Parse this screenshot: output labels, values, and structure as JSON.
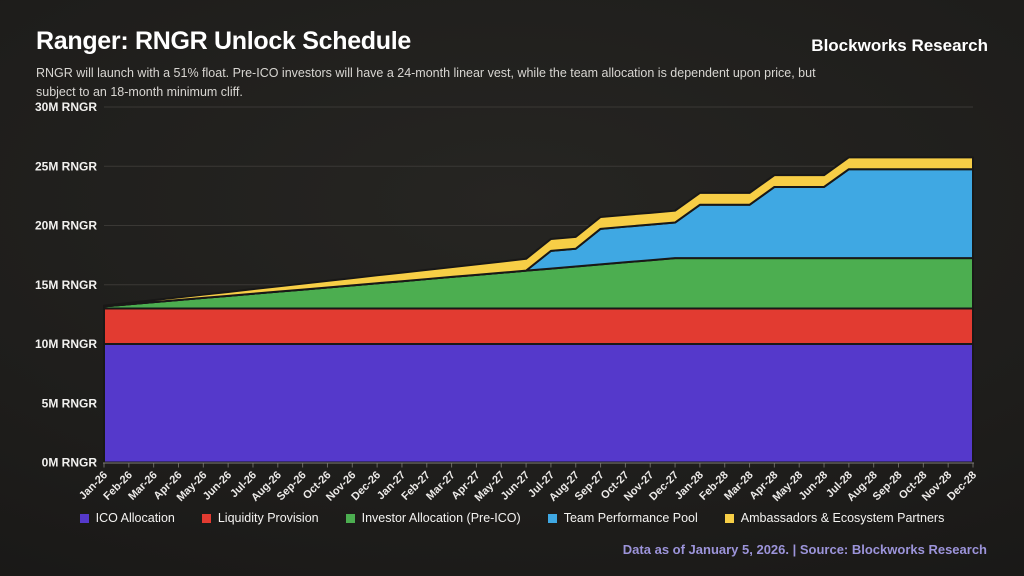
{
  "header": {
    "title": "Ranger: RNGR Unlock Schedule",
    "brand": "Blockworks Research"
  },
  "subtitle": {
    "line1": "RNGR will launch with a 51% float. Pre-ICO investors will have a 24-month linear vest, while the team allocation is dependent upon price, but",
    "line2": "subject to an 18-month minimum cliff."
  },
  "footer": {
    "text": "Data as of January 5, 2026. | Source: Blockworks Research",
    "color": "#9C94DA"
  },
  "chart_data": {
    "type": "area",
    "stacked": true,
    "title": "Ranger: RNGR Unlock Schedule",
    "unit": "M RNGR",
    "ylim": [
      0,
      30
    ],
    "grid": "horizontal",
    "legend_position": "bottom",
    "y_ticks": [
      {
        "value": 0,
        "label": "0M RNGR"
      },
      {
        "value": 5,
        "label": "5M RNGR"
      },
      {
        "value": 10,
        "label": "10M RNGR"
      },
      {
        "value": 15,
        "label": "15M RNGR"
      },
      {
        "value": 20,
        "label": "20M RNGR"
      },
      {
        "value": 25,
        "label": "25M RNGR"
      },
      {
        "value": 30,
        "label": "30M RNGR"
      }
    ],
    "months": [
      "Jan-26",
      "Feb-26",
      "Mar-26",
      "Apr-26",
      "May-26",
      "Jun-26",
      "Jul-26",
      "Aug-26",
      "Sep-26",
      "Oct-26",
      "Nov-26",
      "Dec-26",
      "Jan-27",
      "Feb-27",
      "Mar-27",
      "Apr-27",
      "May-27",
      "Jun-27",
      "Jul-27",
      "Aug-27",
      "Sep-27",
      "Oct-27",
      "Nov-27",
      "Dec-27",
      "Jan-28",
      "Feb-28",
      "Mar-28",
      "Apr-28",
      "May-28",
      "Jun-28",
      "Jul-28",
      "Aug-28",
      "Sep-28",
      "Oct-28",
      "Nov-28",
      "Dec-28"
    ],
    "series": [
      {
        "name": "ICO Allocation",
        "color": "#5539CB",
        "values": [
          10,
          10,
          10,
          10,
          10,
          10,
          10,
          10,
          10,
          10,
          10,
          10,
          10,
          10,
          10,
          10,
          10,
          10,
          10,
          10,
          10,
          10,
          10,
          10,
          10,
          10,
          10,
          10,
          10,
          10,
          10,
          10,
          10,
          10,
          10,
          10
        ]
      },
      {
        "name": "Liquidity Provision",
        "color": "#E23B31",
        "values": [
          3,
          3,
          3,
          3,
          3,
          3,
          3,
          3,
          3,
          3,
          3,
          3,
          3,
          3,
          3,
          3,
          3,
          3,
          3,
          3,
          3,
          3,
          3,
          3,
          3,
          3,
          3,
          3,
          3,
          3,
          3,
          3,
          3,
          3,
          3,
          3
        ]
      },
      {
        "name": "Investor Allocation (Pre-ICO)",
        "color": "#4CAE50",
        "values": [
          0.18,
          0.35,
          0.53,
          0.71,
          0.89,
          1.06,
          1.24,
          1.42,
          1.59,
          1.77,
          1.95,
          2.13,
          2.3,
          2.48,
          2.66,
          2.83,
          3.01,
          3.19,
          3.36,
          3.54,
          3.72,
          3.9,
          4.07,
          4.25,
          4.25,
          4.25,
          4.25,
          4.25,
          4.25,
          4.25,
          4.25,
          4.25,
          4.25,
          4.25,
          4.25,
          4.25
        ]
      },
      {
        "name": "Team Performance Pool",
        "color": "#3FA8E3",
        "values": [
          0,
          0,
          0,
          0,
          0,
          0,
          0,
          0,
          0,
          0,
          0,
          0,
          0,
          0,
          0,
          0,
          0,
          0,
          1.5,
          1.5,
          3,
          3,
          3,
          3,
          4.5,
          4.5,
          4.5,
          6,
          6,
          6,
          7.5,
          7.5,
          7.5,
          7.5,
          7.5,
          7.5
        ]
      },
      {
        "name": "Ambassadors & Ecosystem Partners",
        "color": "#F7CE46",
        "values": [
          0.06,
          0.11,
          0.17,
          0.22,
          0.28,
          0.33,
          0.39,
          0.44,
          0.5,
          0.56,
          0.61,
          0.67,
          0.72,
          0.78,
          0.83,
          0.89,
          0.94,
          1,
          1,
          1,
          1,
          1,
          1,
          1,
          1,
          1,
          1,
          1,
          1,
          1,
          1,
          1,
          1,
          1,
          1,
          1
        ]
      }
    ]
  }
}
